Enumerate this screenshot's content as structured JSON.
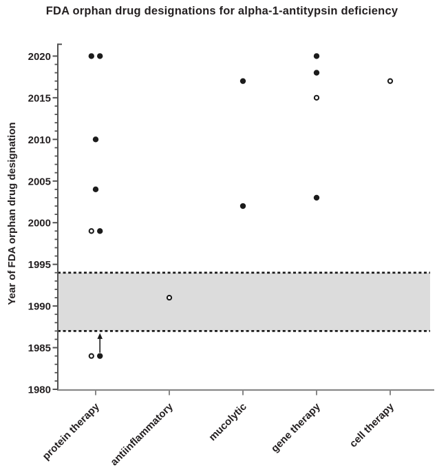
{
  "title": "FDA orphan drug designations for alpha-1-antitypsin deficiency",
  "chart_data": {
    "type": "scatter",
    "title": "FDA orphan drug designations for alpha-1-antitypsin deficiency",
    "xlabel": "",
    "ylabel": "Year of FDA orphan drug designation",
    "categories": [
      "protein therapy",
      "antiinflammatory",
      "mucolytic",
      "gene therapy",
      "cell therapy"
    ],
    "ylim": [
      1980,
      2021.5
    ],
    "yticks": [
      1980,
      1985,
      1990,
      1995,
      2000,
      2005,
      2010,
      2015,
      2020
    ],
    "minor_tick_interval": 1,
    "grid": false,
    "legend": "none",
    "shaded_band": {
      "from_year": 1987,
      "to_year": 1994,
      "fill": "#dcdcdc",
      "border_style": "dashed",
      "border_color": "#1a1a1a"
    },
    "points": [
      {
        "category": "protein therapy",
        "year": 2020,
        "style": "filled",
        "offset": "left"
      },
      {
        "category": "protein therapy",
        "year": 2020,
        "style": "filled",
        "offset": "right"
      },
      {
        "category": "protein therapy",
        "year": 2010,
        "style": "filled",
        "offset": "center"
      },
      {
        "category": "protein therapy",
        "year": 2004,
        "style": "filled",
        "offset": "center"
      },
      {
        "category": "protein therapy",
        "year": 1999,
        "style": "open",
        "offset": "left"
      },
      {
        "category": "protein therapy",
        "year": 1999,
        "style": "filled",
        "offset": "right"
      },
      {
        "category": "protein therapy",
        "year": 1984,
        "style": "open",
        "offset": "left"
      },
      {
        "category": "protein therapy",
        "year": 1984,
        "style": "filled",
        "offset": "right"
      },
      {
        "category": "antiinflammatory",
        "year": 1991,
        "style": "open",
        "offset": "center"
      },
      {
        "category": "mucolytic",
        "year": 2017,
        "style": "filled",
        "offset": "center"
      },
      {
        "category": "mucolytic",
        "year": 2002,
        "style": "filled",
        "offset": "center"
      },
      {
        "category": "gene therapy",
        "year": 2020,
        "style": "filled",
        "offset": "center"
      },
      {
        "category": "gene therapy",
        "year": 2018,
        "style": "filled",
        "offset": "center"
      },
      {
        "category": "gene therapy",
        "year": 2015,
        "style": "open",
        "offset": "center"
      },
      {
        "category": "gene therapy",
        "year": 2003,
        "style": "filled",
        "offset": "center"
      },
      {
        "category": "cell therapy",
        "year": 2017,
        "style": "open",
        "offset": "center"
      }
    ],
    "annotation_arrow": {
      "category": "protein therapy",
      "offset": "right",
      "from_year": 1984.4,
      "to_year": 1986.75,
      "direction": "up"
    },
    "colors": {
      "text": "#231f20",
      "point": "#1c1c1c",
      "open_point_fill": "#ffffff",
      "y_axis": "#515151",
      "x_axis": "#878787",
      "band_fill": "#dcdcdc",
      "band_border": "#1a1a1a"
    }
  }
}
